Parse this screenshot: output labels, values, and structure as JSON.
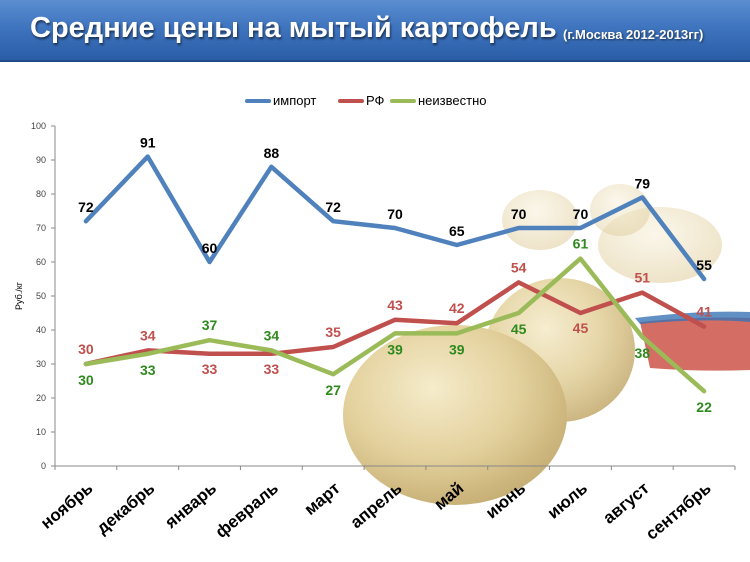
{
  "header": {
    "title": "Средние цены на мытый картофель",
    "subtitle": "(г.Москва  2012-2013гг)"
  },
  "colors": {
    "title_bar": "#3f74be",
    "import": "#4f81bd",
    "rf": "#c0504d",
    "unknown": "#9bbb59"
  },
  "chart_data": {
    "type": "line",
    "ylabel": "Руб./кг",
    "xlabel": "",
    "ylim": [
      0,
      100
    ],
    "y_ticks": [
      0,
      10,
      20,
      30,
      40,
      50,
      60,
      70,
      80,
      90,
      100
    ],
    "grid": false,
    "legend_position": "top-center",
    "categories": [
      "ноябрь",
      "декабрь",
      "январь",
      "февраль",
      "март",
      "апрель",
      "май",
      "июнь",
      "июль",
      "август",
      "сентябрь"
    ],
    "series": [
      {
        "name": "импорт",
        "color": "#4f81bd",
        "label_color": "#000000",
        "values": [
          72,
          91,
          60,
          88,
          72,
          70,
          65,
          70,
          70,
          79,
          55
        ]
      },
      {
        "name": "РФ",
        "color": "#c0504d",
        "label_color": "#c0504d",
        "values": [
          30,
          34,
          33,
          33,
          35,
          43,
          42,
          54,
          45,
          51,
          41
        ]
      },
      {
        "name": "неизвестно",
        "color": "#9bbb59",
        "label_color": "#2f8a1e",
        "values": [
          30,
          33,
          37,
          34,
          27,
          39,
          39,
          45,
          61,
          38,
          22
        ]
      }
    ]
  }
}
